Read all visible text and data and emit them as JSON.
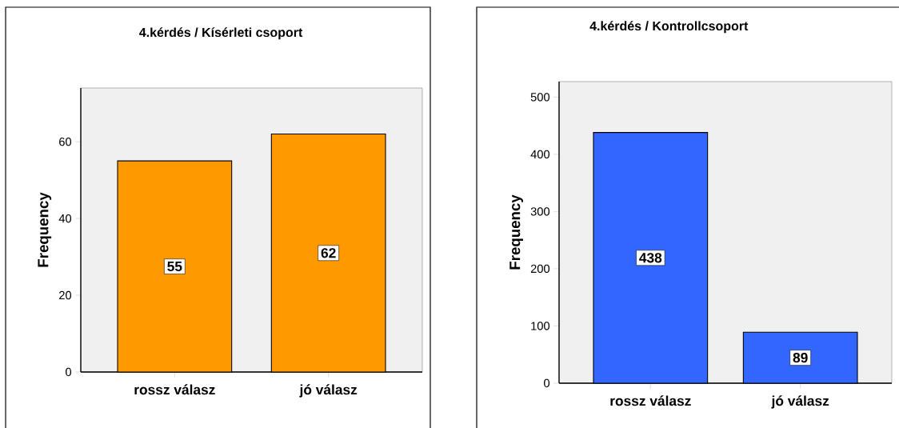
{
  "chart_data": [
    {
      "type": "bar",
      "title": "4.kérdés / Kísérleti csoport",
      "ylabel": "Frequency",
      "categories": [
        "rossz válasz",
        "jó válasz"
      ],
      "values": [
        55,
        62
      ],
      "color": "#ff9900",
      "ylim": [
        0,
        74
      ],
      "yticks": [
        0,
        20,
        40,
        60
      ],
      "data_labels": true
    },
    {
      "type": "bar",
      "title": "4.kérdés / Kontrollcsoport",
      "ylabel": "Frequency",
      "categories": [
        "rossz válasz",
        "jó válasz"
      ],
      "values": [
        438,
        89
      ],
      "color": "#3366ff",
      "ylim": [
        0,
        527
      ],
      "yticks": [
        0,
        100,
        200,
        300,
        400,
        500
      ],
      "data_labels": true
    }
  ]
}
